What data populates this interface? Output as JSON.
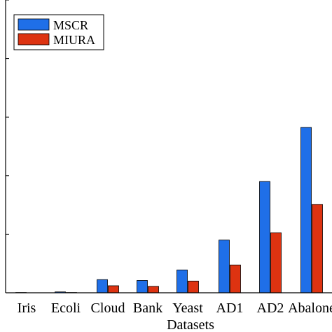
{
  "chart_data": {
    "type": "bar",
    "categories": [
      "Iris",
      "Ecoli",
      "Cloud",
      "Bank",
      "Yeast",
      "AD1",
      "AD2",
      "Abalone"
    ],
    "series": [
      {
        "name": "MSCR",
        "color": "#1f6fe8",
        "values": [
          0.1,
          0.3,
          4.5,
          4.2,
          7.8,
          18.0,
          38.0,
          56.5
        ]
      },
      {
        "name": "MIURA",
        "color": "#dd3311",
        "values": [
          0.0,
          0.1,
          2.4,
          2.2,
          4.0,
          9.5,
          20.5,
          30.2
        ]
      }
    ],
    "xlabel": "Datasets",
    "ylabel": "",
    "ylim": [
      0,
      100
    ],
    "yticks": [
      0,
      20,
      40,
      60,
      80,
      100
    ],
    "legend": "top-left",
    "grid": false
  }
}
